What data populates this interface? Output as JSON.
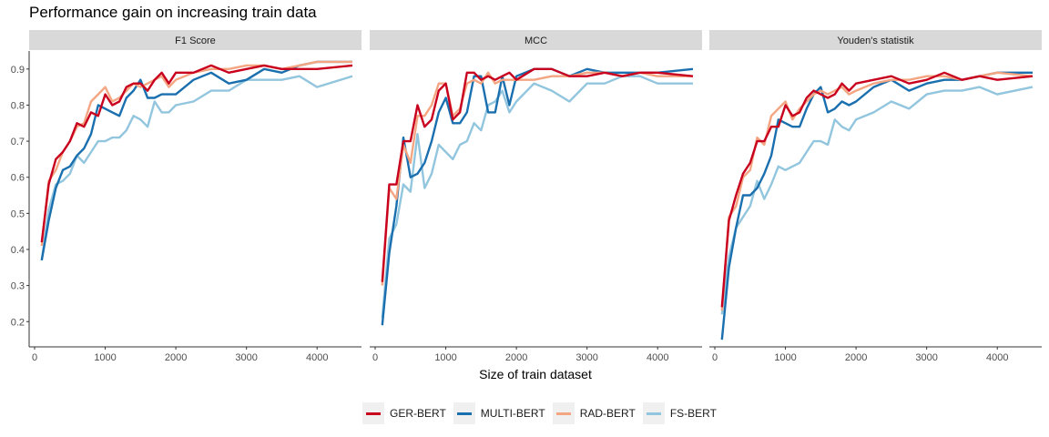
{
  "title": "Performance gain on increasing train data",
  "xlabel": "Size of train dataset",
  "colors": {
    "GER-BERT": "#c8001e",
    "MULTI-BERT": "#1a6faf",
    "RAD-BERT": "#f4a582",
    "FS-BERT": "#92c5de"
  },
  "legend": [
    "GER-BERT",
    "MULTI-BERT",
    "RAD-BERT",
    "FS-BERT"
  ],
  "chart_data": [
    {
      "type": "line",
      "title": "F1 Score",
      "xlim": [
        0,
        4500
      ],
      "ylim": [
        0.13,
        0.95
      ],
      "xticks": [
        0,
        1000,
        2000,
        3000,
        4000
      ],
      "yticks": [
        0.2,
        0.3,
        0.4,
        0.5,
        0.6,
        0.7,
        0.8,
        0.9
      ],
      "series": [
        {
          "name": "GER-BERT",
          "x": [
            100,
            200,
            300,
            400,
            500,
            600,
            700,
            800,
            900,
            1000,
            1100,
            1200,
            1300,
            1400,
            1500,
            1600,
            1700,
            1800,
            1900,
            2000,
            2250,
            2500,
            2750,
            3000,
            3250,
            3500,
            3750,
            4000,
            4500
          ],
          "y": [
            0.42,
            0.58,
            0.65,
            0.67,
            0.7,
            0.75,
            0.74,
            0.78,
            0.77,
            0.83,
            0.8,
            0.81,
            0.85,
            0.86,
            0.86,
            0.84,
            0.87,
            0.89,
            0.86,
            0.89,
            0.89,
            0.91,
            0.89,
            0.9,
            0.91,
            0.9,
            0.9,
            0.9,
            0.91
          ]
        },
        {
          "name": "MULTI-BERT",
          "x": [
            100,
            200,
            300,
            400,
            500,
            600,
            700,
            800,
            900,
            1000,
            1100,
            1200,
            1300,
            1400,
            1500,
            1600,
            1700,
            1800,
            2000,
            2250,
            2500,
            2750,
            3000,
            3250,
            3500,
            3750,
            4000,
            4500
          ],
          "y": [
            0.37,
            0.48,
            0.57,
            0.62,
            0.63,
            0.66,
            0.68,
            0.72,
            0.8,
            0.79,
            0.78,
            0.77,
            0.82,
            0.84,
            0.87,
            0.82,
            0.82,
            0.83,
            0.83,
            0.87,
            0.89,
            0.86,
            0.87,
            0.9,
            0.89,
            0.91,
            0.92,
            0.92
          ]
        },
        {
          "name": "RAD-BERT",
          "x": [
            100,
            200,
            300,
            400,
            500,
            600,
            700,
            800,
            900,
            1000,
            1100,
            1200,
            1300,
            1400,
            1500,
            1600,
            1700,
            1800,
            1900,
            2000,
            2250,
            2500,
            2750,
            3000,
            3250,
            3500,
            3750,
            4000,
            4500
          ],
          "y": [
            0.41,
            0.59,
            0.62,
            0.67,
            0.7,
            0.74,
            0.75,
            0.81,
            0.83,
            0.85,
            0.81,
            0.82,
            0.84,
            0.86,
            0.85,
            0.86,
            0.87,
            0.88,
            0.85,
            0.87,
            0.89,
            0.9,
            0.9,
            0.91,
            0.91,
            0.9,
            0.91,
            0.92,
            0.92
          ]
        },
        {
          "name": "FS-BERT",
          "x": [
            100,
            200,
            300,
            400,
            500,
            600,
            700,
            800,
            900,
            1000,
            1100,
            1200,
            1300,
            1400,
            1500,
            1600,
            1700,
            1800,
            1900,
            2000,
            2250,
            2500,
            2750,
            3000,
            3250,
            3500,
            3750,
            4000,
            4500
          ],
          "y": [
            0.37,
            0.51,
            0.58,
            0.59,
            0.61,
            0.66,
            0.64,
            0.67,
            0.7,
            0.7,
            0.71,
            0.71,
            0.73,
            0.77,
            0.76,
            0.74,
            0.81,
            0.78,
            0.78,
            0.8,
            0.81,
            0.84,
            0.84,
            0.87,
            0.87,
            0.87,
            0.88,
            0.85,
            0.88
          ]
        }
      ]
    },
    {
      "type": "line",
      "title": "MCC",
      "xlim": [
        0,
        4500
      ],
      "ylim": [
        0.13,
        0.95
      ],
      "xticks": [
        0,
        1000,
        2000,
        3000,
        4000
      ],
      "series": [
        {
          "name": "GER-BERT",
          "x": [
            100,
            200,
            300,
            400,
            500,
            600,
            700,
            800,
            900,
            1000,
            1100,
            1200,
            1300,
            1400,
            1500,
            1600,
            1700,
            1800,
            1900,
            2000,
            2250,
            2500,
            2750,
            3000,
            3250,
            3500,
            3750,
            4000,
            4500
          ],
          "y": [
            0.31,
            0.58,
            0.58,
            0.7,
            0.7,
            0.8,
            0.74,
            0.76,
            0.84,
            0.86,
            0.76,
            0.78,
            0.89,
            0.89,
            0.87,
            0.88,
            0.87,
            0.88,
            0.89,
            0.87,
            0.9,
            0.9,
            0.88,
            0.88,
            0.89,
            0.88,
            0.89,
            0.89,
            0.88
          ]
        },
        {
          "name": "MULTI-BERT",
          "x": [
            100,
            200,
            300,
            400,
            500,
            600,
            700,
            800,
            900,
            1000,
            1100,
            1200,
            1300,
            1400,
            1500,
            1600,
            1700,
            1800,
            1900,
            2000,
            2250,
            2500,
            2750,
            3000,
            3250,
            3500,
            3750,
            4000,
            4500
          ],
          "y": [
            0.19,
            0.39,
            0.52,
            0.71,
            0.6,
            0.61,
            0.64,
            0.7,
            0.78,
            0.82,
            0.75,
            0.75,
            0.78,
            0.88,
            0.88,
            0.78,
            0.78,
            0.88,
            0.8,
            0.88,
            0.9,
            0.9,
            0.88,
            0.9,
            0.89,
            0.89,
            0.89,
            0.89,
            0.9
          ]
        },
        {
          "name": "RAD-BERT",
          "x": [
            100,
            200,
            300,
            400,
            500,
            600,
            700,
            800,
            900,
            1000,
            1100,
            1200,
            1300,
            1400,
            1500,
            1600,
            1700,
            1800,
            1900,
            2000,
            2250,
            2500,
            2750,
            3000,
            3250,
            3500,
            3750,
            4000,
            4500
          ],
          "y": [
            0.3,
            0.57,
            0.54,
            0.69,
            0.64,
            0.77,
            0.77,
            0.8,
            0.86,
            0.86,
            0.77,
            0.79,
            0.86,
            0.87,
            0.86,
            0.89,
            0.86,
            0.87,
            0.87,
            0.87,
            0.87,
            0.88,
            0.88,
            0.89,
            0.89,
            0.88,
            0.89,
            0.88,
            0.88
          ]
        },
        {
          "name": "FS-BERT",
          "x": [
            100,
            200,
            300,
            400,
            500,
            600,
            700,
            800,
            900,
            1000,
            1100,
            1200,
            1300,
            1400,
            1500,
            1600,
            1700,
            1800,
            1900,
            2000,
            2250,
            2500,
            2750,
            3000,
            3250,
            3500,
            3750,
            4000,
            4500
          ],
          "y": [
            0.21,
            0.43,
            0.47,
            0.58,
            0.56,
            0.72,
            0.57,
            0.61,
            0.69,
            0.67,
            0.65,
            0.69,
            0.7,
            0.75,
            0.73,
            0.8,
            0.81,
            0.84,
            0.78,
            0.81,
            0.86,
            0.84,
            0.81,
            0.86,
            0.86,
            0.88,
            0.88,
            0.86,
            0.86
          ]
        }
      ]
    },
    {
      "type": "line",
      "title": "Youden's statistik",
      "xlim": [
        0,
        4500
      ],
      "ylim": [
        0.13,
        0.95
      ],
      "xticks": [
        0,
        1000,
        2000,
        3000,
        4000
      ],
      "series": [
        {
          "name": "GER-BERT",
          "x": [
            100,
            200,
            300,
            400,
            500,
            600,
            700,
            800,
            900,
            1000,
            1100,
            1200,
            1300,
            1400,
            1500,
            1600,
            1700,
            1800,
            1900,
            2000,
            2250,
            2500,
            2750,
            3000,
            3250,
            3500,
            3750,
            4000,
            4500
          ],
          "y": [
            0.24,
            0.48,
            0.55,
            0.61,
            0.64,
            0.7,
            0.7,
            0.74,
            0.74,
            0.8,
            0.77,
            0.78,
            0.82,
            0.84,
            0.83,
            0.82,
            0.83,
            0.86,
            0.84,
            0.86,
            0.87,
            0.88,
            0.86,
            0.87,
            0.89,
            0.87,
            0.88,
            0.87,
            0.88
          ]
        },
        {
          "name": "MULTI-BERT",
          "x": [
            100,
            200,
            300,
            400,
            500,
            600,
            700,
            800,
            900,
            1000,
            1100,
            1200,
            1300,
            1400,
            1500,
            1600,
            1700,
            1800,
            1900,
            2000,
            2250,
            2500,
            2750,
            3000,
            3250,
            3500,
            3750,
            4000,
            4500
          ],
          "y": [
            0.15,
            0.35,
            0.46,
            0.55,
            0.55,
            0.57,
            0.61,
            0.66,
            0.76,
            0.75,
            0.74,
            0.74,
            0.79,
            0.83,
            0.85,
            0.78,
            0.79,
            0.81,
            0.8,
            0.81,
            0.85,
            0.87,
            0.84,
            0.86,
            0.87,
            0.87,
            0.88,
            0.89,
            0.89
          ]
        },
        {
          "name": "RAD-BERT",
          "x": [
            100,
            200,
            300,
            400,
            500,
            600,
            700,
            800,
            900,
            1000,
            1100,
            1200,
            1300,
            1400,
            1500,
            1600,
            1700,
            1800,
            1900,
            2000,
            2250,
            2500,
            2750,
            3000,
            3250,
            3500,
            3750,
            4000,
            4500
          ],
          "y": [
            0.23,
            0.49,
            0.52,
            0.6,
            0.62,
            0.71,
            0.69,
            0.77,
            0.79,
            0.81,
            0.76,
            0.79,
            0.81,
            0.83,
            0.84,
            0.83,
            0.84,
            0.85,
            0.83,
            0.84,
            0.86,
            0.87,
            0.87,
            0.88,
            0.88,
            0.87,
            0.88,
            0.89,
            0.88
          ]
        },
        {
          "name": "FS-BERT",
          "x": [
            100,
            200,
            300,
            400,
            500,
            600,
            700,
            800,
            900,
            1000,
            1100,
            1200,
            1300,
            1400,
            1500,
            1600,
            1700,
            1800,
            1900,
            2000,
            2250,
            2500,
            2750,
            3000,
            3250,
            3500,
            3750,
            4000,
            4500
          ],
          "y": [
            0.22,
            0.38,
            0.46,
            0.49,
            0.52,
            0.59,
            0.54,
            0.58,
            0.63,
            0.62,
            0.63,
            0.64,
            0.67,
            0.7,
            0.7,
            0.69,
            0.76,
            0.74,
            0.73,
            0.76,
            0.78,
            0.81,
            0.79,
            0.83,
            0.84,
            0.84,
            0.85,
            0.83,
            0.85
          ]
        }
      ]
    }
  ]
}
